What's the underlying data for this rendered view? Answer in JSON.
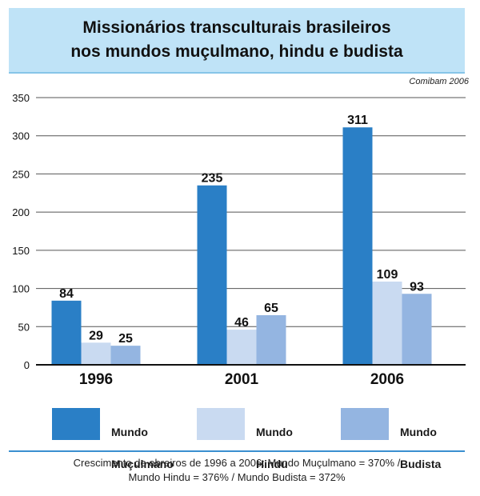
{
  "chart_data": {
    "type": "bar",
    "title_lines": [
      "Missionários transculturais brasileiros",
      "nos mundos muçulmano, hindu e budista"
    ],
    "source": "Comibam 2006",
    "categories": [
      "1996",
      "2001",
      "2006"
    ],
    "ylim": [
      0,
      350
    ],
    "yticks": [
      0,
      50,
      100,
      150,
      200,
      250,
      300,
      350
    ],
    "grid": true,
    "series": [
      {
        "name": "Mundo Muçulmano",
        "legend_lines": [
          "Mundo",
          "Muçulmano"
        ],
        "color": "#2a7fc6",
        "values": [
          84,
          235,
          311
        ]
      },
      {
        "name": "Mundo Hindu",
        "legend_lines": [
          "Mundo",
          "Hindu"
        ],
        "color": "#c9daf1",
        "values": [
          29,
          46,
          109
        ]
      },
      {
        "name": "Mundo Budista",
        "legend_lines": [
          "Mundo",
          "Budista"
        ],
        "color": "#94b5e1",
        "values": [
          25,
          65,
          93
        ]
      }
    ],
    "note_lines": [
      "Crescimento de obreiros de 1996 a 2006: Mundo Muçulmano = 370% /",
      "Mundo Hindu = 376% / Mundo Budista = 372%"
    ]
  }
}
